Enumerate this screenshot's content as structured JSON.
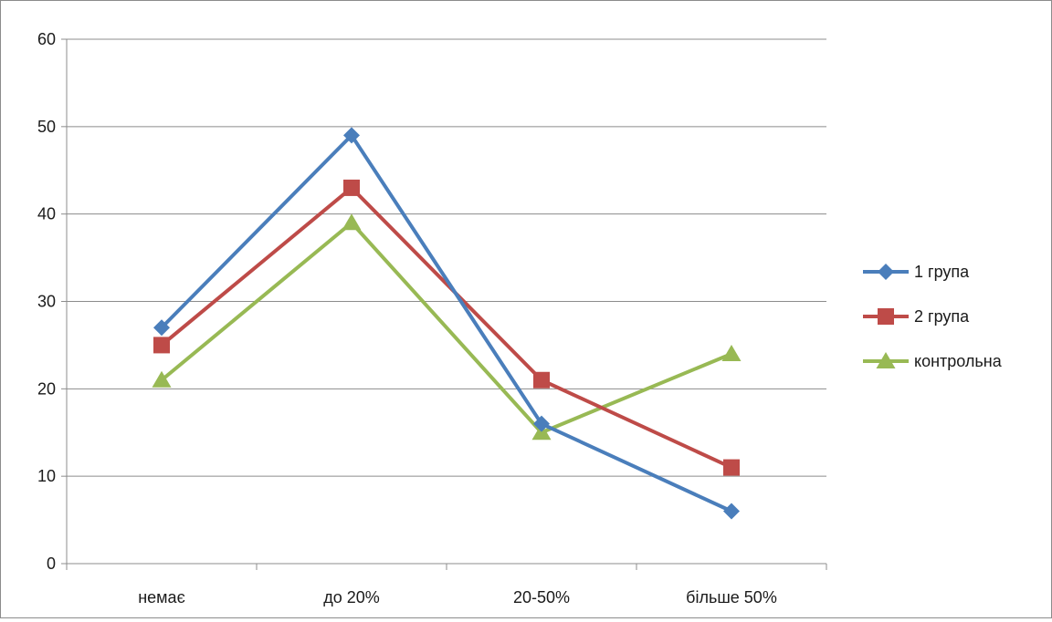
{
  "chart_data": {
    "type": "line",
    "title": "",
    "xlabel": "",
    "ylabel": "",
    "categories": [
      "немає",
      "до 20%",
      "20-50%",
      "більше 50%"
    ],
    "ylim": [
      0,
      60
    ],
    "yticks": [
      0,
      10,
      20,
      30,
      40,
      50,
      60
    ],
    "grid": true,
    "legend_position": "right",
    "series": [
      {
        "name": "1 група",
        "values": [
          27,
          49,
          16,
          6
        ],
        "color": "#4a7ebb",
        "marker": "diamond"
      },
      {
        "name": "2 група",
        "values": [
          25,
          43,
          21,
          11
        ],
        "color": "#be4b48",
        "marker": "square"
      },
      {
        "name": "контрольна",
        "values": [
          21,
          39,
          15,
          24
        ],
        "color": "#98b954",
        "marker": "triangle"
      }
    ]
  }
}
